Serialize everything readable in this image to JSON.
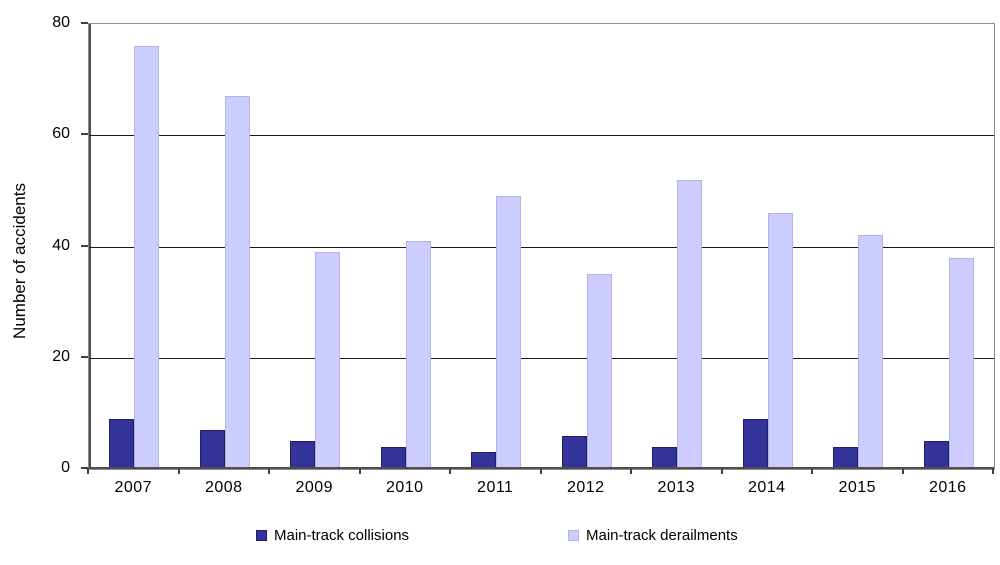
{
  "chart_data": {
    "type": "bar",
    "title": "",
    "xlabel": "",
    "ylabel": "Number of accidents",
    "categories": [
      "2007",
      "2008",
      "2009",
      "2010",
      "2011",
      "2012",
      "2013",
      "2014",
      "2015",
      "2016"
    ],
    "series": [
      {
        "name": "Main-track collisions",
        "values": [
          9,
          7,
          5,
          4,
          3,
          6,
          4,
          9,
          4,
          5
        ],
        "fill": "#333399",
        "border": "#1F1F66"
      },
      {
        "name": "Main-track derailments",
        "values": [
          76,
          67,
          39,
          41,
          49,
          35,
          52,
          46,
          42,
          38
        ],
        "fill": "#CCCCFF",
        "border": "#B3B3E6"
      }
    ],
    "ylim": [
      0,
      80
    ],
    "yticks": [
      0,
      20,
      40,
      60,
      80
    ],
    "grid": true,
    "legend_position": "bottom",
    "colors": {
      "gridline": "#1a1a1a",
      "plot_frame": "#8c8c8c",
      "axis": "#4d4d4d",
      "background": "#ffffff"
    }
  }
}
